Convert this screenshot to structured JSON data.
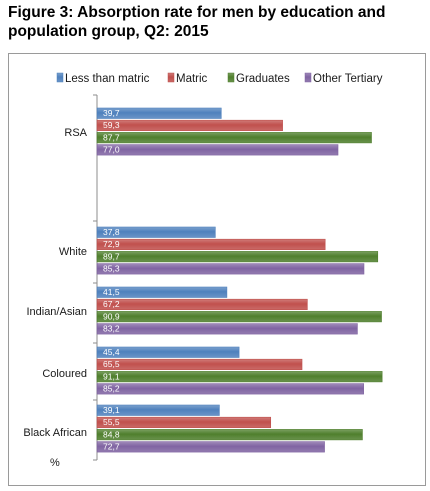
{
  "figure": {
    "title": "Figure 3: Absorption rate for men by education and population group, Q2: 2015"
  },
  "chart_data": {
    "type": "bar",
    "orientation": "horizontal",
    "title": "Figure 3: Absorption rate for men by education and population group, Q2: 2015",
    "unit_label": "%",
    "categories": [
      "RSA",
      "White",
      "Indian/Asian",
      "Coloured",
      "Black African"
    ],
    "series": [
      {
        "name": "Less than matric",
        "color": "#4f81bd",
        "values": [
          39.7,
          37.8,
          41.5,
          45.4,
          39.1
        ],
        "labels": [
          "39,7",
          "37,8",
          "41,5",
          "45,4",
          "39,1"
        ]
      },
      {
        "name": "Matric",
        "color": "#c0504d",
        "values": [
          59.3,
          72.9,
          67.2,
          65.5,
          55.5
        ],
        "labels": [
          "59,3",
          "72,9",
          "67,2",
          "65,5",
          "55,5"
        ]
      },
      {
        "name": "Graduates",
        "color": "#4f7f2d",
        "values": [
          87.7,
          89.7,
          90.9,
          91.1,
          84.8
        ],
        "labels": [
          "87,7",
          "89,7",
          "90,9",
          "91,1",
          "84,8"
        ]
      },
      {
        "name": "Other Tertiary",
        "color": "#8064a2",
        "values": [
          77.0,
          85.3,
          83.2,
          85.2,
          72.7
        ],
        "labels": [
          "77,0",
          "85,3",
          "83,2",
          "85,2",
          "72,7"
        ]
      }
    ],
    "xlim": [
      0,
      100
    ],
    "grid": false,
    "legend_position": "top"
  }
}
